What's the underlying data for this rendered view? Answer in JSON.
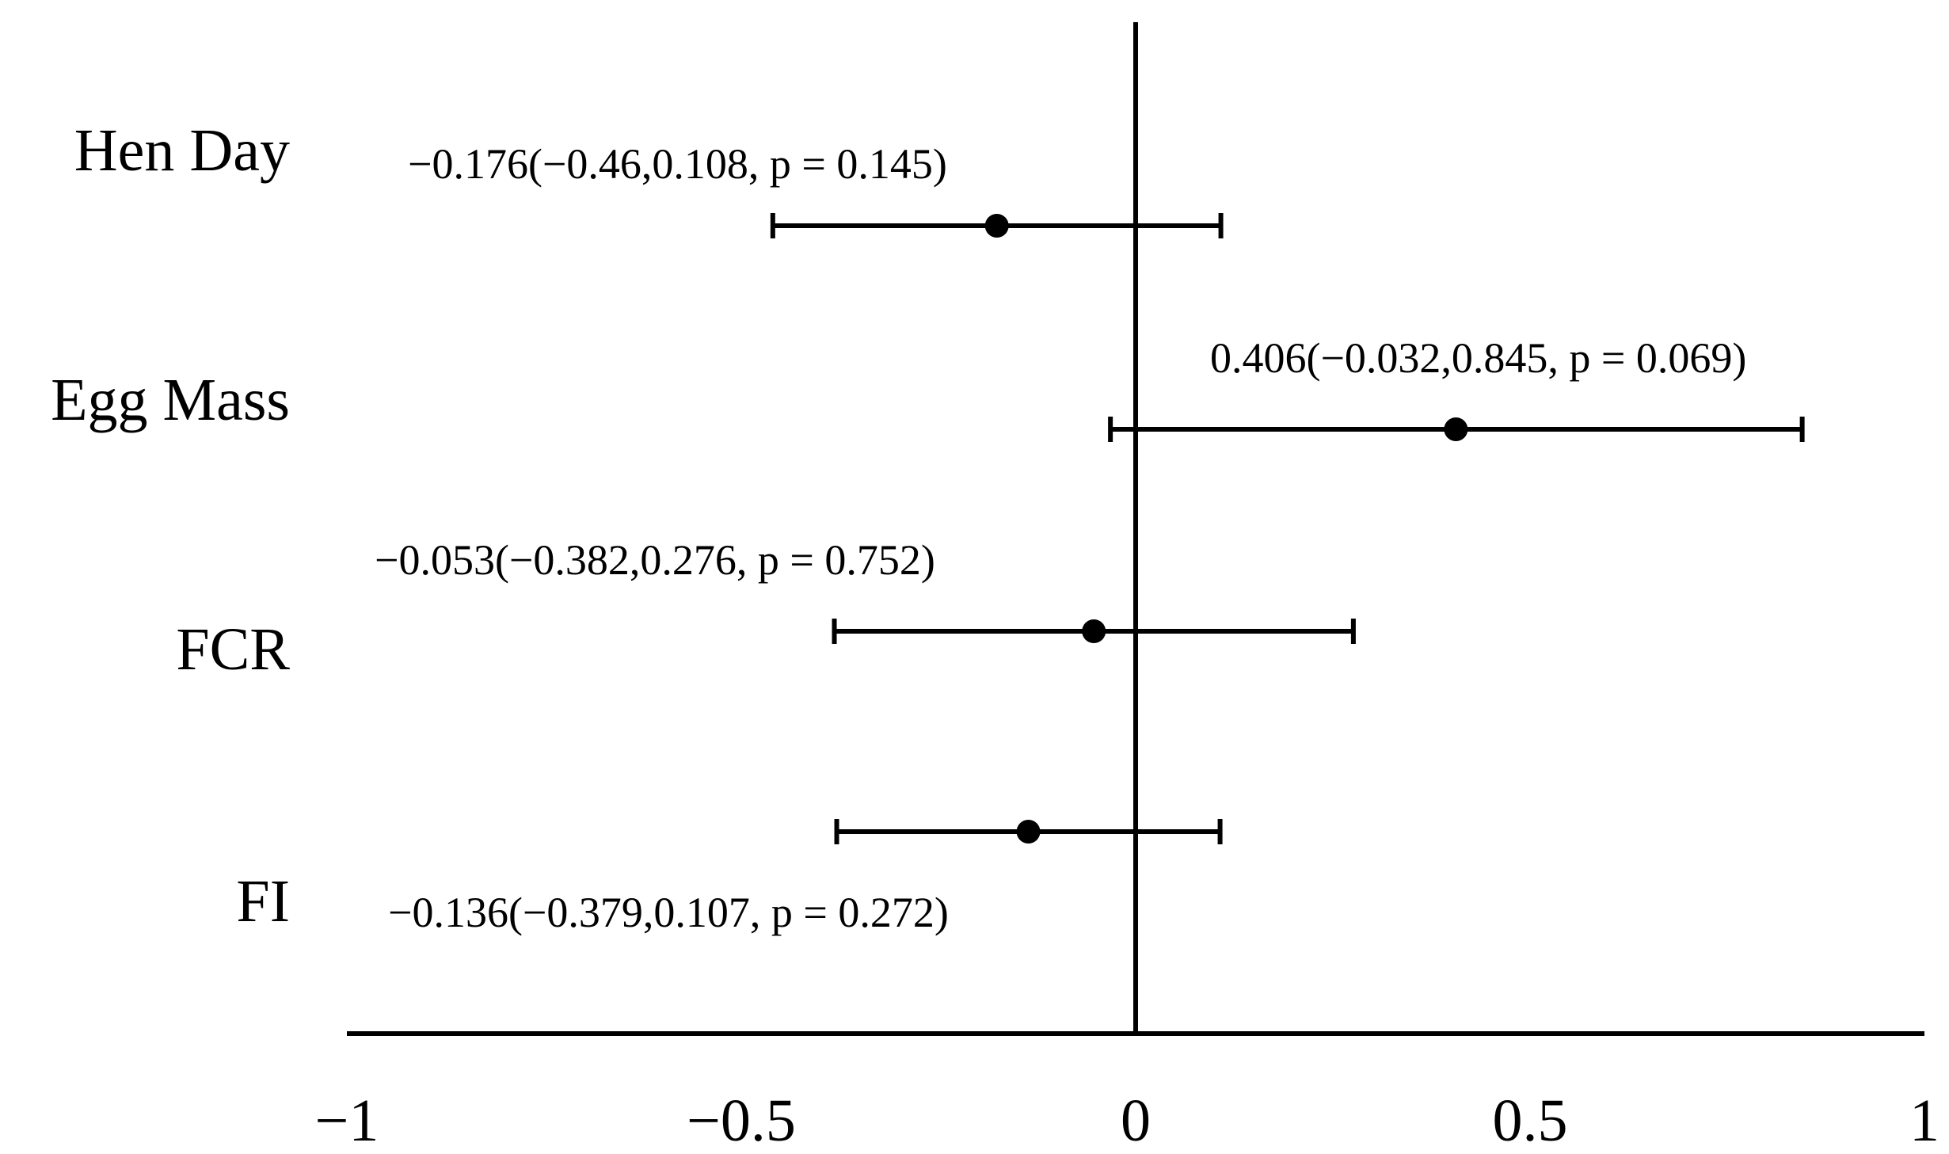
{
  "chart_data": {
    "type": "forest",
    "title": "",
    "xlabel": "",
    "ylabel": "",
    "xlim": [
      -1,
      1
    ],
    "x_ticks": [
      -1,
      -0.5,
      0,
      0.5,
      1
    ],
    "x_tick_labels": [
      "−1",
      "−0.5",
      "0",
      "0.5",
      "1"
    ],
    "reference_line": 0,
    "grid": false,
    "categories": [
      "Hen Day",
      "Egg Mass",
      "FCR",
      "FI"
    ],
    "estimates": [
      {
        "category": "Hen Day",
        "value": -0.176,
        "ci": [
          -0.46,
          0.108
        ],
        "p": 0.145,
        "label": "−0.176(−0.46,0.108,  p = 0.145)"
      },
      {
        "category": "Egg Mass",
        "value": 0.406,
        "ci": [
          -0.032,
          0.845
        ],
        "p": 0.069,
        "label": "0.406(−0.032,0.845,  p = 0.069)"
      },
      {
        "category": "FCR",
        "value": -0.053,
        "ci": [
          -0.382,
          0.276
        ],
        "p": 0.752,
        "label": "−0.053(−0.382,0.276,  p = 0.752)"
      },
      {
        "category": "FI",
        "value": -0.136,
        "ci": [
          -0.379,
          0.107
        ],
        "p": 0.272,
        "label": "−0.136(−0.379,0.107,  p = 0.272)"
      }
    ]
  }
}
